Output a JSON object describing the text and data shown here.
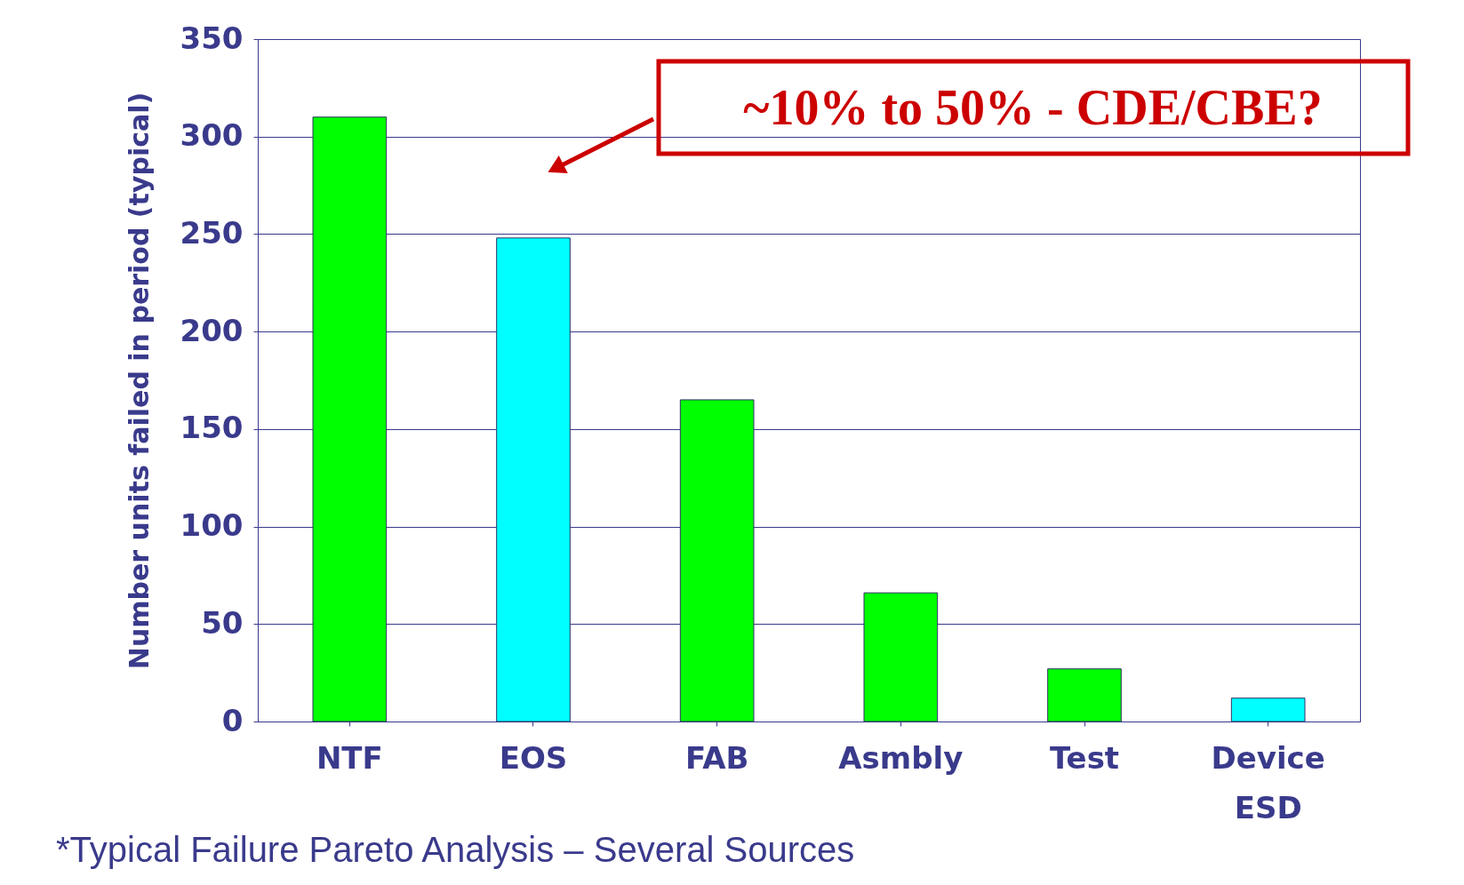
{
  "chart_data": {
    "type": "bar",
    "ylabel": "Number units failed in period (typical)",
    "categories": [
      "NTF",
      "EOS",
      "FAB",
      "Asmbly",
      "Test",
      "Device ESD"
    ],
    "values": [
      310,
      248,
      165,
      66,
      27,
      12
    ],
    "colors": [
      "#00ff00",
      "#00ffff",
      "#00ff00",
      "#00ff00",
      "#00ff00",
      "#00ffff"
    ],
    "ylim": [
      0,
      350
    ],
    "yticks": [
      0,
      50,
      100,
      150,
      200,
      250,
      300,
      350
    ],
    "grid": "y",
    "legend": false,
    "annotations": [
      "~10% to 50%  - CDE/CBE?",
      "*Typical Failure Pareto Analysis – Several Sources"
    ]
  }
}
